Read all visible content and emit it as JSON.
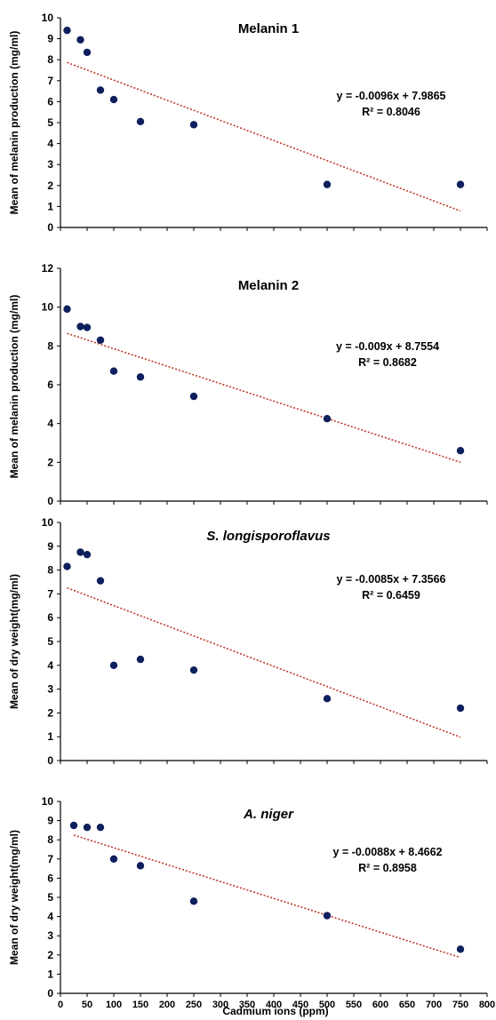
{
  "figure": {
    "xlabel": "Cadmium ions (ppm)"
  },
  "colors": {
    "point": "#0d1f5c",
    "trend": "#c0392b",
    "axis": "#000000"
  },
  "chart_data": [
    {
      "type": "scatter",
      "title": "Melanin 1",
      "title_italic": false,
      "ylabel": "Mean of melanin production (mg/ml)",
      "xlim": [
        0,
        800
      ],
      "ylim": [
        0,
        10
      ],
      "yticks": [
        0,
        1,
        2,
        3,
        4,
        5,
        6,
        7,
        8,
        9,
        10
      ],
      "x": [
        12.5,
        37.5,
        50,
        75,
        100,
        150,
        250,
        500,
        750
      ],
      "y": [
        9.4,
        8.95,
        8.35,
        6.55,
        6.1,
        5.05,
        4.9,
        2.05,
        2.05
      ],
      "trendline": {
        "slope": -0.0096,
        "intercept": 7.9865,
        "x_range": [
          12.5,
          750
        ]
      },
      "equation": "y = -0.0096x + 7.9865",
      "r2": "R² = 0.8046",
      "grid": false,
      "legend": "none"
    },
    {
      "type": "scatter",
      "title": "Melanin 2",
      "title_italic": false,
      "ylabel": "Mean of melanin production (mg/ml)",
      "xlim": [
        0,
        800
      ],
      "ylim": [
        0,
        12
      ],
      "yticks": [
        0,
        2,
        4,
        6,
        8,
        10,
        12
      ],
      "x": [
        12.5,
        37.5,
        50,
        75,
        100,
        150,
        250,
        500,
        750
      ],
      "y": [
        9.9,
        9.0,
        8.95,
        8.3,
        6.7,
        6.4,
        5.4,
        4.25,
        2.6
      ],
      "trendline": {
        "slope": -0.009,
        "intercept": 8.7554,
        "x_range": [
          12.5,
          750
        ]
      },
      "equation": "y = -0.009x + 8.7554",
      "r2": "R² = 0.8682",
      "grid": false,
      "legend": "none"
    },
    {
      "type": "scatter",
      "title": "S. longisporoflavus",
      "title_italic": true,
      "ylabel": "Mean of dry weight(mg/ml)",
      "xlim": [
        0,
        800
      ],
      "ylim": [
        0,
        10
      ],
      "yticks": [
        0,
        1,
        2,
        3,
        4,
        5,
        6,
        7,
        8,
        9,
        10
      ],
      "x": [
        12.5,
        37.5,
        50,
        75,
        100,
        150,
        250,
        500,
        750
      ],
      "y": [
        8.15,
        8.75,
        8.65,
        7.55,
        4.0,
        4.25,
        3.8,
        2.6,
        2.2
      ],
      "trendline": {
        "slope": -0.0085,
        "intercept": 7.3566,
        "x_range": [
          12.5,
          750
        ]
      },
      "equation": "y = -0.0085x + 7.3566",
      "r2": "R² = 0.6459",
      "grid": false,
      "legend": "none"
    },
    {
      "type": "scatter",
      "title": "A. niger",
      "title_italic": true,
      "ylabel": "Mean of dry weight(mg/ml)",
      "xlim": [
        0,
        800
      ],
      "ylim": [
        0,
        10
      ],
      "yticks": [
        0,
        1,
        2,
        3,
        4,
        5,
        6,
        7,
        8,
        9,
        10
      ],
      "xticks": [
        0,
        50,
        100,
        150,
        200,
        250,
        300,
        350,
        400,
        450,
        500,
        550,
        600,
        650,
        700,
        750,
        800
      ],
      "x": [
        25,
        50,
        75,
        100,
        150,
        250,
        500,
        750
      ],
      "y": [
        8.75,
        8.65,
        8.65,
        7.0,
        6.65,
        4.8,
        4.05,
        2.3
      ],
      "trendline": {
        "slope": -0.0088,
        "intercept": 8.4662,
        "x_range": [
          25,
          750
        ]
      },
      "equation": "y = -0.0088x + 8.4662",
      "r2": "R² = 0.8958",
      "grid": false,
      "legend": "none"
    }
  ]
}
